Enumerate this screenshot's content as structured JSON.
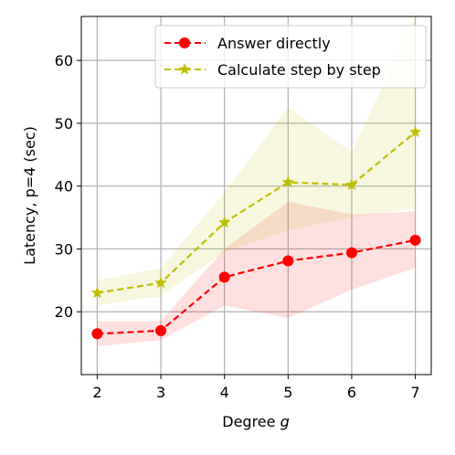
{
  "chart_data": {
    "type": "line",
    "x": [
      2,
      3,
      4,
      5,
      6,
      7
    ],
    "xlabel": "Degree",
    "xlabel_var": "g",
    "ylabel": "Latency, p=4 (sec)",
    "xlim": [
      1.75,
      7.25
    ],
    "ylim": [
      10,
      67
    ],
    "xticks": [
      "2",
      "3",
      "4",
      "5",
      "6",
      "7"
    ],
    "yticks": [
      "20",
      "30",
      "40",
      "50",
      "60"
    ],
    "ytick_values": [
      20,
      30,
      40,
      50,
      60
    ],
    "grid": true,
    "legend_position": "top-right",
    "series": [
      {
        "name": "Answer directly",
        "color": "#ff0000",
        "marker": "circle",
        "linestyle": "dashed",
        "values": [
          16.5,
          17.0,
          25.5,
          28.1,
          29.4,
          31.4
        ],
        "band_lower": [
          14.5,
          15.5,
          21.0,
          19.0,
          23.5,
          27.0
        ],
        "band_upper": [
          18.5,
          18.5,
          30.0,
          37.5,
          35.5,
          36.0
        ]
      },
      {
        "name": "Calculate step by step",
        "color": "#bfbf00",
        "marker": "star",
        "linestyle": "dashed",
        "values": [
          23.0,
          24.6,
          34.2,
          40.6,
          40.2,
          48.6
        ],
        "band_lower": [
          21.0,
          22.5,
          29.5,
          33.0,
          35.0,
          36.5
        ],
        "band_upper": [
          25.0,
          27.0,
          39.0,
          52.5,
          45.5,
          67.0
        ]
      }
    ]
  }
}
